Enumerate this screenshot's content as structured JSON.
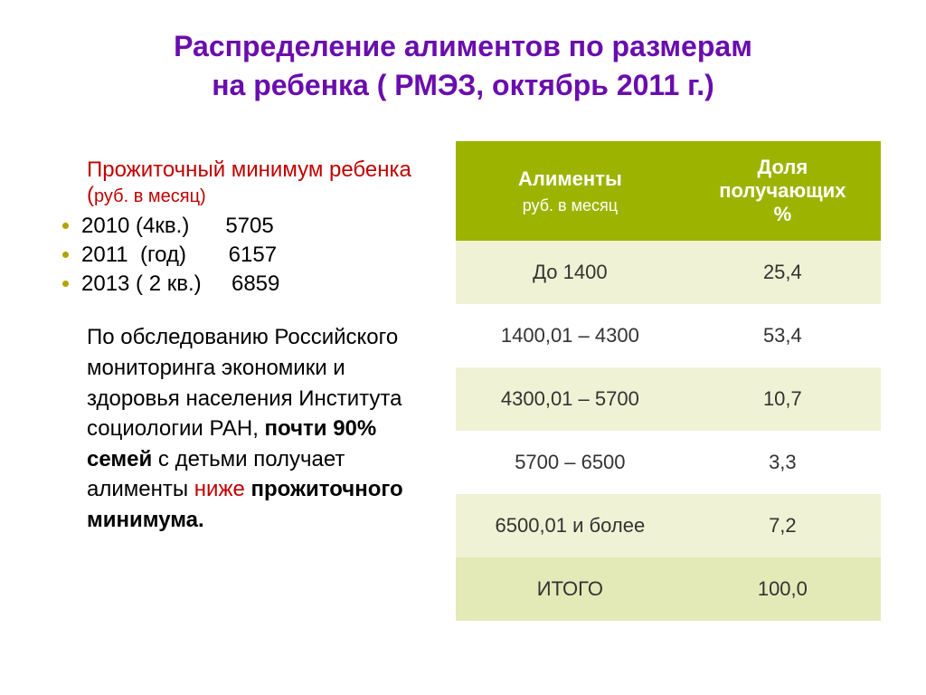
{
  "title_line1": "Распределение алиментов по размерам",
  "title_line2": "на ребенка ( РМЭЗ, октябрь 2011 г.)",
  "title_color": "#6a0dad",
  "title_fontsize": 32,
  "subheading": {
    "text_part1": "Прожиточный минимум ребенка (",
    "text_part2": "руб. в месяц)",
    "color": "#c00000",
    "fontsize_main": 24,
    "fontsize_small": 20
  },
  "years": [
    {
      "label": "2010 (4кв.)      5705"
    },
    {
      "label": "2011  (год)       6157"
    },
    {
      "label": "2013 ( 2 кв.)     6859"
    }
  ],
  "years_fontsize": 24,
  "years_color": "#000000",
  "bullet_color": "#b4a200",
  "paragraph": {
    "p1": "По обследованию Российского мониторинга экономики и здоровья населения Института социологии РАН, ",
    "bold1": "почти 90% семей",
    "p2": " с детьми получает алименты ",
    "red1": "ниже",
    "p3": " ",
    "bold2": "прожиточного минимума.",
    "fontsize": 24,
    "red_color": "#c00000"
  },
  "table": {
    "header_bg": "#9cb400",
    "header_color": "#ffffff",
    "row_odd_bg": "#eff2d4",
    "row_even_bg": "#ffffff",
    "footer_bg": "#e4e9b8",
    "text_color": "#333333",
    "fontsize_header": 22,
    "fontsize_subheader": 18,
    "fontsize_cell": 22,
    "columns": [
      {
        "line1": "Алименты",
        "line2": "руб. в месяц"
      },
      {
        "line1": "Доля",
        "line2": "получающих",
        "line3": "%"
      }
    ],
    "rows": [
      {
        "range": "До 1400",
        "share": "25,4"
      },
      {
        "range": "1400,01 – 4300",
        "share": "53,4"
      },
      {
        "range": "4300,01 – 5700",
        "share": "10,7"
      },
      {
        "range": "5700 – 6500",
        "share": "3,3"
      },
      {
        "range": "6500,01 и более",
        "share": "7,2"
      }
    ],
    "footer": {
      "label": "ИТОГО",
      "value": "100,0"
    }
  }
}
